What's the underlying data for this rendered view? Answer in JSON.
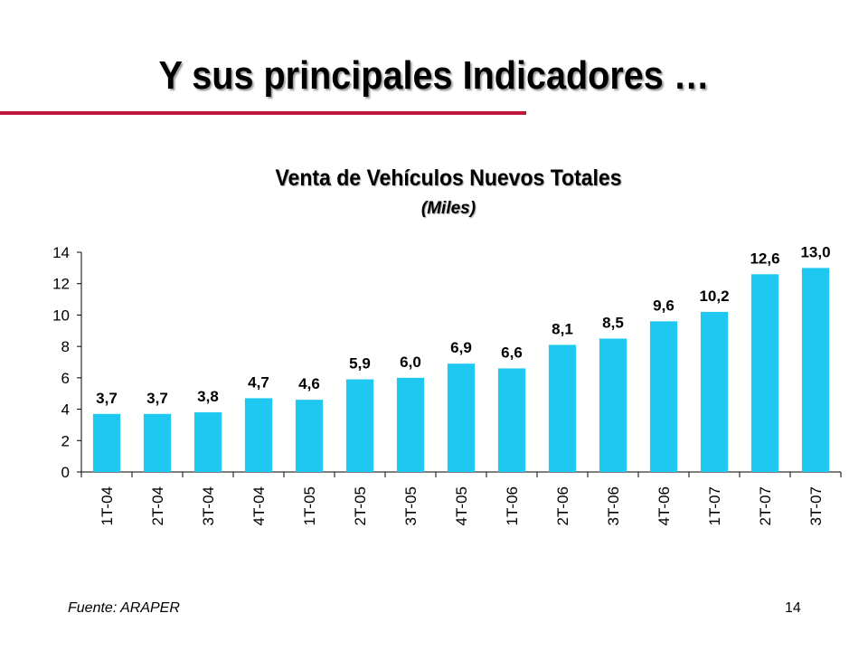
{
  "slide": {
    "title": "Y sus principales Indicadores …",
    "source": "Fuente: ARAPER",
    "page_number": "14"
  },
  "colors": {
    "accent_rule": "#c0183a",
    "bar": "#1ec8f0"
  },
  "chart_data": {
    "type": "bar",
    "title": "Venta de Vehículos Nuevos Totales",
    "subtitle": "(Miles)",
    "categories": [
      "1T-04",
      "2T-04",
      "3T-04",
      "4T-04",
      "1T-05",
      "2T-05",
      "3T-05",
      "4T-05",
      "1T-06",
      "2T-06",
      "3T-06",
      "4T-06",
      "1T-07",
      "2T-07",
      "3T-07"
    ],
    "values": [
      3.7,
      3.7,
      3.8,
      4.7,
      4.6,
      5.9,
      6.0,
      6.9,
      6.6,
      8.1,
      8.5,
      9.6,
      10.2,
      12.6,
      13.0
    ],
    "data_labels": [
      "3,7",
      "3,7",
      "3,8",
      "4,7",
      "4,6",
      "5,9",
      "6,0",
      "6,9",
      "6,6",
      "8,1",
      "8,5",
      "9,6",
      "10,2",
      "12,6",
      "13,0"
    ],
    "yticks": [
      "0",
      "2",
      "4",
      "6",
      "8",
      "10",
      "12",
      "14"
    ],
    "ylim": [
      0,
      14
    ],
    "grid": false,
    "legend": "none"
  }
}
